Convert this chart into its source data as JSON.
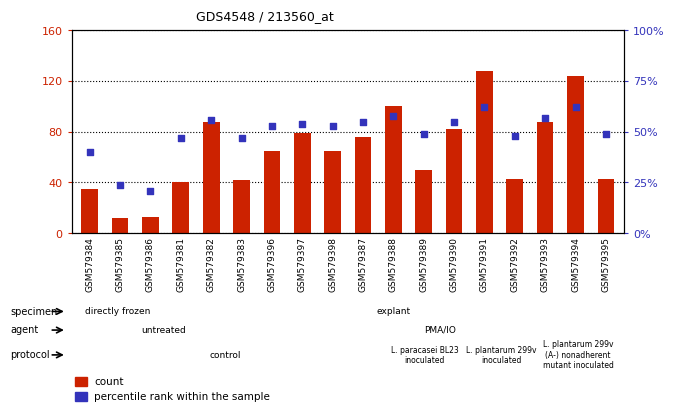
{
  "title": "GDS4548 / 213560_at",
  "samples": [
    "GSM579384",
    "GSM579385",
    "GSM579386",
    "GSM579381",
    "GSM579382",
    "GSM579383",
    "GSM579396",
    "GSM579397",
    "GSM579398",
    "GSM579387",
    "GSM579388",
    "GSM579389",
    "GSM579390",
    "GSM579391",
    "GSM579392",
    "GSM579393",
    "GSM579394",
    "GSM579395"
  ],
  "counts": [
    35,
    12,
    13,
    40,
    88,
    42,
    65,
    79,
    65,
    76,
    100,
    50,
    82,
    128,
    43,
    88,
    124,
    43
  ],
  "percentiles": [
    40,
    24,
    21,
    47,
    56,
    47,
    53,
    54,
    53,
    55,
    58,
    49,
    55,
    62,
    48,
    57,
    62,
    49
  ],
  "bar_color": "#cc2200",
  "dot_color": "#3333bb",
  "ylim_left": [
    0,
    160
  ],
  "ylim_right": [
    0,
    100
  ],
  "yticks_left": [
    0,
    40,
    80,
    120,
    160
  ],
  "yticks_right": [
    0,
    25,
    50,
    75,
    100
  ],
  "ytick_labels_left": [
    "0",
    "40",
    "80",
    "120",
    "160"
  ],
  "ytick_labels_right": [
    "0%",
    "25%",
    "50%",
    "75%",
    "100%"
  ],
  "specimen_labels": [
    {
      "text": "directly frozen",
      "start": 0,
      "end": 3,
      "color": "#88dd88"
    },
    {
      "text": "explant",
      "start": 3,
      "end": 18,
      "color": "#55bb55"
    }
  ],
  "agent_labels": [
    {
      "text": "untreated",
      "start": 0,
      "end": 6,
      "color": "#aaaaee"
    },
    {
      "text": "PMA/IO",
      "start": 6,
      "end": 18,
      "color": "#7777cc"
    }
  ],
  "protocol_labels": [
    {
      "text": "control",
      "start": 0,
      "end": 10,
      "color": "#ffdddd"
    },
    {
      "text": "L. paracasei BL23\ninoculated",
      "start": 10,
      "end": 13,
      "color": "#ffaaaa"
    },
    {
      "text": "L. plantarum 299v\ninoculated",
      "start": 13,
      "end": 15,
      "color": "#ff9999"
    },
    {
      "text": "L. plantarum 299v\n(A-) nonadherent\nmutant inoculated",
      "start": 15,
      "end": 18,
      "color": "#ff8888"
    }
  ],
  "row_labels": [
    "specimen",
    "agent",
    "protocol"
  ],
  "legend_items": [
    {
      "label": "count",
      "color": "#cc2200"
    },
    {
      "label": "percentile rank within the sample",
      "color": "#3333bb"
    }
  ],
  "xticklabel_bg": "#cccccc",
  "chart_bg": "#ffffff"
}
